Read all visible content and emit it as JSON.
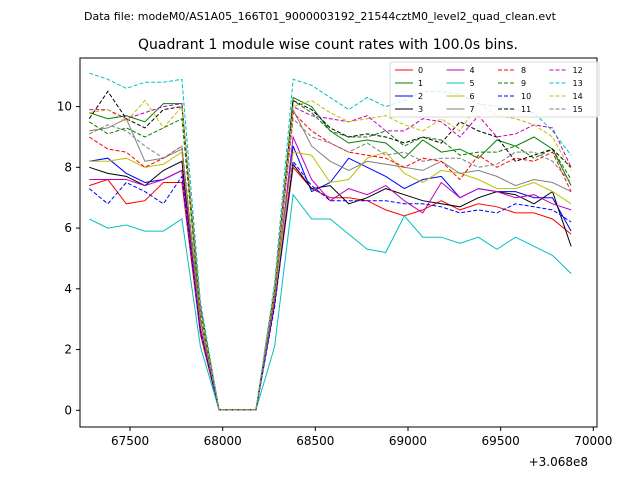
{
  "header": {
    "data_file": "Data file: modeM0/AS1A05_166T01_9000003192_21544cztM0_level2_quad_clean.evt"
  },
  "chart_data": {
    "type": "line",
    "title": "Quadrant 1 module wise count rates with 100.0s bins.",
    "xlabel": "",
    "ylabel": "",
    "x_offset_label": "+3.068e8",
    "xlim": [
      67230,
      70020
    ],
    "ylim": [
      -0.55,
      11.6
    ],
    "x_ticks": [
      67500,
      68000,
      68500,
      69000,
      69500,
      70000
    ],
    "x_tick_labels": [
      "67500",
      "68000",
      "68500",
      "69000",
      "69500",
      "70000"
    ],
    "y_ticks": [
      0,
      2,
      4,
      6,
      8,
      10
    ],
    "y_tick_labels": [
      "0",
      "2",
      "4",
      "6",
      "8",
      "10"
    ],
    "grid": false,
    "legend_position": "upper-right",
    "legend_columns": 4,
    "x": [
      67280,
      67380,
      67480,
      67580,
      67680,
      67780,
      67880,
      67980,
      68080,
      68180,
      68280,
      68380,
      68480,
      68580,
      68680,
      68780,
      68880,
      68980,
      69080,
      69180,
      69280,
      69380,
      69480,
      69580,
      69680,
      69780,
      69880
    ],
    "series": [
      {
        "name": "0",
        "color": "#ff0000",
        "dash": "solid",
        "values": [
          7.4,
          7.6,
          6.8,
          6.9,
          7.5,
          7.5,
          2.5,
          0.02,
          0.02,
          0.02,
          3.5,
          8.0,
          7.3,
          7.0,
          7.0,
          6.9,
          6.6,
          6.4,
          6.6,
          6.9,
          6.6,
          6.8,
          6.7,
          6.5,
          6.5,
          6.3,
          5.8
        ]
      },
      {
        "name": "1",
        "color": "#008000",
        "dash": "solid",
        "values": [
          9.8,
          9.6,
          9.7,
          9.5,
          10.1,
          10.1,
          3.0,
          0.02,
          0.02,
          0.02,
          3.8,
          10.3,
          10.0,
          9.2,
          8.8,
          8.9,
          8.8,
          8.3,
          8.9,
          8.5,
          8.6,
          8.3,
          8.9,
          8.7,
          9.0,
          8.6,
          7.4
        ]
      },
      {
        "name": "2",
        "color": "#0000ff",
        "dash": "solid",
        "values": [
          8.2,
          8.3,
          7.8,
          7.5,
          7.6,
          7.9,
          2.7,
          0.02,
          0.02,
          0.02,
          3.5,
          8.7,
          7.2,
          7.5,
          8.3,
          8.0,
          7.7,
          7.3,
          7.6,
          7.7,
          7.0,
          7.3,
          7.2,
          7.2,
          7.0,
          7.0,
          5.9
        ]
      },
      {
        "name": "3",
        "color": "#000000",
        "dash": "solid",
        "values": [
          8.0,
          7.8,
          7.7,
          7.4,
          7.9,
          8.2,
          2.7,
          0.02,
          0.02,
          0.02,
          3.6,
          8.1,
          7.3,
          7.4,
          6.8,
          7.0,
          7.3,
          7.1,
          6.9,
          6.8,
          6.7,
          7.0,
          7.2,
          7.1,
          6.8,
          7.2,
          5.4
        ]
      },
      {
        "name": "4",
        "color": "#c000c0",
        "dash": "solid",
        "values": [
          7.6,
          7.6,
          7.6,
          7.4,
          7.6,
          7.9,
          2.7,
          0.02,
          0.02,
          0.02,
          3.6,
          9.0,
          7.6,
          6.9,
          7.3,
          7.1,
          7.4,
          6.9,
          6.5,
          7.5,
          7.0,
          7.3,
          7.2,
          7.0,
          7.1,
          6.8,
          6.6
        ]
      },
      {
        "name": "5",
        "color": "#00c0c0",
        "dash": "solid",
        "values": [
          6.3,
          6.0,
          6.1,
          5.9,
          5.9,
          6.3,
          2.1,
          0.02,
          0.02,
          0.02,
          2.1,
          7.1,
          6.3,
          6.3,
          5.8,
          5.3,
          5.2,
          6.4,
          5.7,
          5.7,
          5.5,
          5.7,
          5.3,
          5.7,
          5.4,
          5.1,
          4.5
        ]
      },
      {
        "name": "6",
        "color": "#c0c000",
        "dash": "solid",
        "values": [
          8.2,
          8.2,
          8.3,
          8.0,
          8.1,
          8.5,
          2.9,
          0.02,
          0.02,
          0.02,
          3.7,
          8.5,
          8.4,
          7.5,
          7.6,
          8.3,
          8.5,
          7.8,
          7.5,
          7.9,
          7.8,
          7.6,
          7.3,
          7.3,
          7.5,
          7.2,
          6.8
        ]
      },
      {
        "name": "7",
        "color": "#808080",
        "dash": "solid",
        "values": [
          9.2,
          9.3,
          9.6,
          8.2,
          8.3,
          8.6,
          3.0,
          0.02,
          0.02,
          0.02,
          3.8,
          9.9,
          8.7,
          8.2,
          7.9,
          8.2,
          8.1,
          8.0,
          7.9,
          8.2,
          7.8,
          7.9,
          7.7,
          7.4,
          7.6,
          7.5,
          7.2
        ]
      },
      {
        "name": "8",
        "color": "#ff0000",
        "dash": "dashed",
        "values": [
          9.0,
          8.6,
          8.5,
          8.0,
          8.3,
          8.7,
          3.0,
          0.02,
          0.02,
          0.02,
          3.7,
          9.8,
          9.2,
          8.8,
          8.5,
          8.4,
          8.3,
          8.0,
          8.3,
          8.2,
          7.6,
          8.4,
          8.0,
          8.3,
          8.2,
          8.5,
          7.2
        ]
      },
      {
        "name": "9",
        "color": "#008000",
        "dash": "dashed",
        "values": [
          9.5,
          9.1,
          9.3,
          9.0,
          9.3,
          9.6,
          3.2,
          0.02,
          0.02,
          0.02,
          3.9,
          10.2,
          9.8,
          9.2,
          9.0,
          9.0,
          9.2,
          8.7,
          9.0,
          8.9,
          8.4,
          8.5,
          8.5,
          8.7,
          8.3,
          8.6,
          7.6
        ]
      },
      {
        "name": "10",
        "color": "#0000ff",
        "dash": "dashed",
        "values": [
          7.3,
          6.8,
          7.5,
          7.2,
          6.8,
          7.7,
          2.6,
          0.02,
          0.02,
          0.02,
          3.4,
          8.2,
          7.4,
          6.9,
          6.9,
          6.9,
          6.9,
          6.8,
          6.8,
          6.7,
          6.5,
          6.6,
          6.5,
          6.8,
          6.7,
          6.6,
          6.2
        ]
      },
      {
        "name": "11",
        "color": "#000000",
        "dash": "dashed",
        "values": [
          9.6,
          10.5,
          9.6,
          9.3,
          9.9,
          10.0,
          3.4,
          0.02,
          0.02,
          0.02,
          4.0,
          10.2,
          9.9,
          9.3,
          9.0,
          9.1,
          9.0,
          8.8,
          9.0,
          8.8,
          9.5,
          9.2,
          9.0,
          8.2,
          8.4,
          8.6,
          8.0
        ]
      },
      {
        "name": "12",
        "color": "#c000c0",
        "dash": "dashed",
        "values": [
          9.9,
          9.9,
          9.6,
          9.8,
          10.0,
          10.1,
          3.4,
          0.02,
          0.02,
          0.02,
          4.0,
          10.0,
          9.7,
          9.6,
          9.5,
          9.7,
          9.2,
          9.2,
          9.6,
          9.5,
          9.0,
          9.7,
          9.0,
          9.1,
          9.4,
          9.3,
          8.0
        ]
      },
      {
        "name": "13",
        "color": "#00c0c0",
        "dash": "dashed",
        "values": [
          11.1,
          10.9,
          10.6,
          10.8,
          10.8,
          10.9,
          3.6,
          0.02,
          0.02,
          0.02,
          4.2,
          10.9,
          10.7,
          10.3,
          9.9,
          10.3,
          10.0,
          10.2,
          10.5,
          10.5,
          10.4,
          10.1,
          10.0,
          9.9,
          9.8,
          9.2,
          8.4
        ]
      },
      {
        "name": "14",
        "color": "#c0c000",
        "dash": "dashed",
        "values": [
          9.8,
          9.9,
          9.5,
          10.2,
          9.3,
          10.0,
          3.3,
          0.02,
          0.02,
          0.02,
          4.0,
          10.0,
          10.2,
          9.8,
          9.5,
          9.6,
          9.7,
          9.4,
          9.2,
          9.6,
          9.2,
          10.1,
          9.7,
          9.6,
          9.4,
          9.0,
          7.9
        ]
      },
      {
        "name": "15",
        "color": "#808080",
        "dash": "dashed",
        "values": [
          9.1,
          9.4,
          9.2,
          8.7,
          8.3,
          8.7,
          3.0,
          0.02,
          0.02,
          0.02,
          3.8,
          9.6,
          9.0,
          8.8,
          8.5,
          8.8,
          8.4,
          8.5,
          8.2,
          8.3,
          8.3,
          8.0,
          8.1,
          8.5,
          8.5,
          8.2,
          7.5
        ]
      }
    ]
  }
}
